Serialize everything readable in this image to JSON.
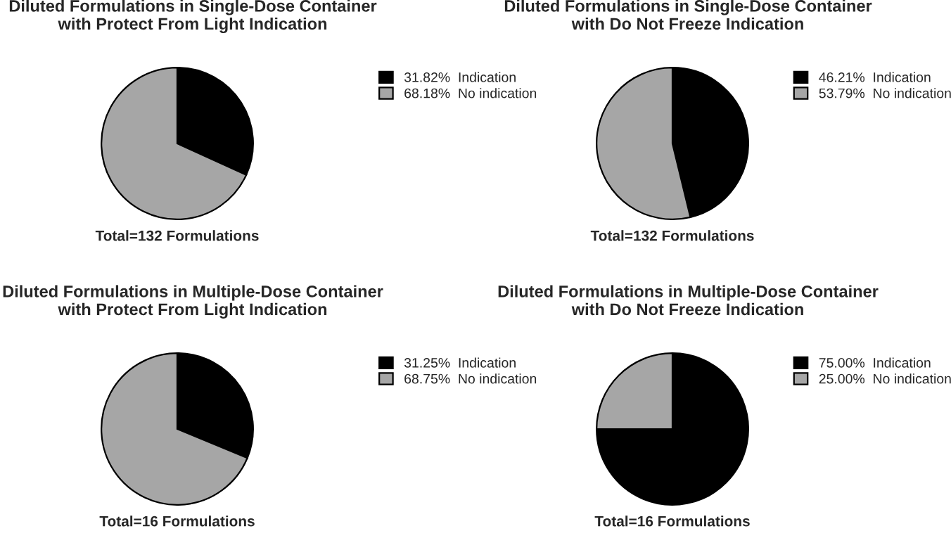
{
  "chart_data": [
    {
      "type": "pie",
      "title": "Diluted Formulations in Single-Dose Container\nwith Protect From Light Indication",
      "categories": [
        "Indication",
        "No indication"
      ],
      "values": [
        31.82,
        68.18
      ],
      "value_labels": [
        "31.82%",
        "68.18%"
      ],
      "colors": [
        "#000000",
        "#a6a6a6"
      ],
      "legend": "right",
      "annotations": [
        "Total=132 Formulations"
      ]
    },
    {
      "type": "pie",
      "title": "Diluted Formulations in Single-Dose Container\nwith Do Not Freeze Indication",
      "categories": [
        "Indication",
        "No indication"
      ],
      "values": [
        46.21,
        53.79
      ],
      "value_labels": [
        "46.21%",
        "53.79%"
      ],
      "colors": [
        "#000000",
        "#a6a6a6"
      ],
      "legend": "right",
      "annotations": [
        "Total=132 Formulations"
      ]
    },
    {
      "type": "pie",
      "title": "Diluted Formulations in Multiple-Dose Container\nwith Protect From Light Indication",
      "categories": [
        "Indication",
        "No indication"
      ],
      "values": [
        31.25,
        68.75
      ],
      "value_labels": [
        "31.25%",
        "68.75%"
      ],
      "colors": [
        "#000000",
        "#a6a6a6"
      ],
      "legend": "right",
      "annotations": [
        "Total=16 Formulations"
      ]
    },
    {
      "type": "pie",
      "title": "Diluted Formulations in Multiple-Dose Container\nwith Do Not Freeze Indication",
      "categories": [
        "Indication",
        "No indication"
      ],
      "values": [
        75.0,
        25.0
      ],
      "value_labels": [
        "75.00%",
        "25.00%"
      ],
      "colors": [
        "#000000",
        "#a6a6a6"
      ],
      "legend": "right",
      "annotations": [
        "Total=16 Formulations"
      ]
    }
  ]
}
